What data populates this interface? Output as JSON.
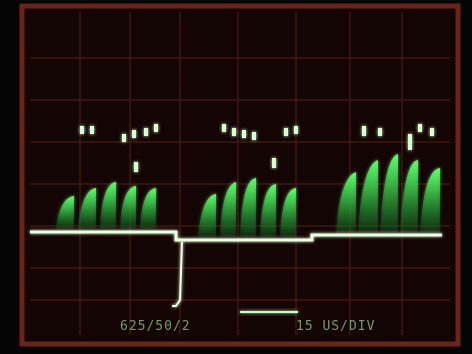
{
  "screen": {
    "format_label": "625/50/2",
    "timebase_label": "15 US/DIV"
  }
}
